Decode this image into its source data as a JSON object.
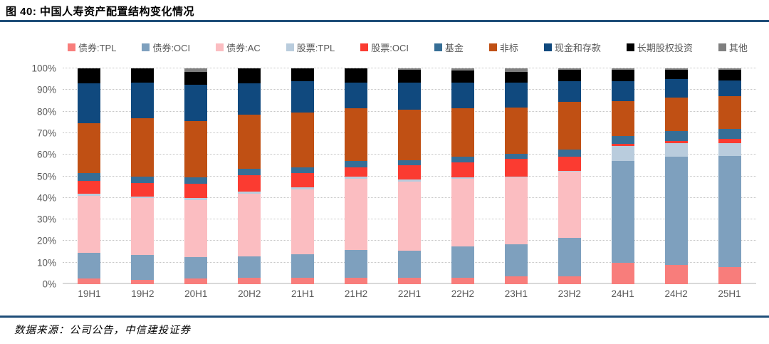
{
  "figure": {
    "title": "图 40:  中国人寿资产配置结构变化情况",
    "source": "数据来源：公司公告，中信建投证券",
    "accent_rule_color": "#1F4E79"
  },
  "chart_data": {
    "type": "bar",
    "subtype": "stacked-percentage-column",
    "title": "中国人寿资产配置结构变化情况",
    "xlabel": "",
    "ylabel": "",
    "grid": true,
    "legend_position": "top",
    "categories": [
      "19H1",
      "19H2",
      "20H1",
      "20H2",
      "21H1",
      "21H2",
      "22H1",
      "22H2",
      "23H1",
      "23H2",
      "24H1",
      "24H2",
      "25H1"
    ],
    "y_axis": {
      "min": 0,
      "max": 100,
      "step": 10,
      "unit": "%",
      "tick_labels": [
        "0%",
        "10%",
        "20%",
        "30%",
        "40%",
        "50%",
        "60%",
        "70%",
        "80%",
        "90%",
        "100%"
      ]
    },
    "series": [
      {
        "name": "债券:TPL",
        "color": "#F87D7B",
        "values": [
          2.5,
          2,
          2.5,
          3,
          3,
          3,
          3,
          3,
          3.5,
          3.5,
          10,
          9,
          8
        ]
      },
      {
        "name": "债券:OCI",
        "color": "#7EA0BE",
        "values": [
          12,
          11.5,
          10,
          10,
          11,
          13,
          12.5,
          14.5,
          15,
          18,
          47,
          50,
          51.5
        ]
      },
      {
        "name": "债券:AC",
        "color": "#FBBDC1",
        "values": [
          26.5,
          26.5,
          26.5,
          29,
          30,
          33,
          32,
          31.5,
          31,
          30.5,
          0,
          0,
          0
        ]
      },
      {
        "name": "股票:TPL",
        "color": "#B9CCDD",
        "values": [
          1,
          0.5,
          1,
          1,
          1,
          1,
          1,
          0.5,
          0.5,
          0.5,
          7,
          6.5,
          6
        ]
      },
      {
        "name": "股票:OCI",
        "color": "#FB3B31",
        "values": [
          6,
          6.5,
          6.5,
          7.5,
          6.5,
          4,
          6.5,
          7,
          8,
          6.5,
          1,
          1,
          2
        ]
      },
      {
        "name": "基金",
        "color": "#366E96",
        "values": [
          3.5,
          3,
          3,
          3,
          2.5,
          3,
          2.5,
          2.5,
          2.5,
          3.5,
          3.5,
          4.5,
          4.5
        ]
      },
      {
        "name": "非标",
        "color": "#C05014",
        "values": [
          23,
          27,
          26,
          25,
          25.5,
          24.5,
          23.5,
          22.5,
          21.5,
          22,
          16.5,
          15.5,
          15
        ]
      },
      {
        "name": "现金和存款",
        "color": "#10497E",
        "values": [
          18.5,
          16.5,
          17,
          14.5,
          14.5,
          12,
          12.5,
          12,
          11.5,
          9.5,
          9,
          8.5,
          7.5
        ]
      },
      {
        "name": "长期股权投资",
        "color": "#000000",
        "values": [
          7,
          6.5,
          6,
          7,
          6,
          6.5,
          6,
          5.5,
          5,
          5.5,
          5.5,
          4.5,
          5
        ]
      },
      {
        "name": "其他",
        "color": "#7F7F7F",
        "values": [
          0,
          0,
          1.5,
          0,
          0,
          0,
          0.5,
          1,
          1.5,
          0.5,
          0.5,
          0.5,
          0.5
        ]
      }
    ]
  }
}
